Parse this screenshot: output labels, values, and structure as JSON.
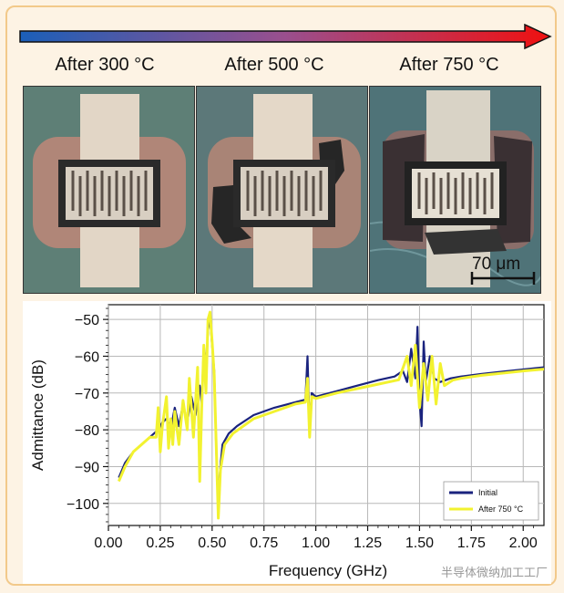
{
  "figure": {
    "labels": [
      "After 300 °C",
      "After 500 °C",
      "After 750 °C"
    ],
    "scale_bar": "70 μm",
    "colors": {
      "arrow_start": "#1b5fb8",
      "arrow_end": "#f01010",
      "initial": "#1a237e",
      "after750": "#f2f230"
    }
  },
  "watermark": "半导体微纳加工工厂",
  "chart_data": {
    "type": "line",
    "xlabel": "Frequency (GHz)",
    "ylabel": "Admittance (dB)",
    "xlim": [
      0.0,
      2.1
    ],
    "ylim": [
      -106,
      -46
    ],
    "xticks": [
      "0.00",
      "0.25",
      "0.50",
      "0.75",
      "1.00",
      "1.25",
      "1.50",
      "1.75",
      "2.00"
    ],
    "yticks": [
      "−50",
      "−60",
      "−70",
      "−80",
      "−90",
      "−100"
    ],
    "grid": true,
    "legend": "bottom-right",
    "series": [
      {
        "name": "Initial",
        "color": "#1a237e",
        "points": [
          [
            0.05,
            -93
          ],
          [
            0.08,
            -89
          ],
          [
            0.12,
            -86
          ],
          [
            0.16,
            -84
          ],
          [
            0.2,
            -82
          ],
          [
            0.24,
            -80
          ],
          [
            0.26,
            -78
          ],
          [
            0.28,
            -77
          ],
          [
            0.3,
            -80
          ],
          [
            0.32,
            -74
          ],
          [
            0.34,
            -79
          ],
          [
            0.36,
            -73
          ],
          [
            0.38,
            -78
          ],
          [
            0.4,
            -71
          ],
          [
            0.42,
            -76
          ],
          [
            0.44,
            -68
          ],
          [
            0.45,
            -73
          ],
          [
            0.46,
            -57
          ],
          [
            0.47,
            -63
          ],
          [
            0.48,
            -53
          ],
          [
            0.49,
            -49
          ],
          [
            0.5,
            -57
          ],
          [
            0.51,
            -64
          ],
          [
            0.52,
            -86
          ],
          [
            0.53,
            -99
          ],
          [
            0.54,
            -90
          ],
          [
            0.55,
            -84
          ],
          [
            0.58,
            -81
          ],
          [
            0.62,
            -79
          ],
          [
            0.7,
            -76
          ],
          [
            0.8,
            -74
          ],
          [
            0.9,
            -72.5
          ],
          [
            0.95,
            -71.8
          ],
          [
            0.96,
            -60
          ],
          [
            0.97,
            -80
          ],
          [
            0.98,
            -70
          ],
          [
            1.0,
            -71
          ],
          [
            1.1,
            -69.5
          ],
          [
            1.2,
            -68
          ],
          [
            1.3,
            -66.5
          ],
          [
            1.38,
            -65.5
          ],
          [
            1.42,
            -64
          ],
          [
            1.44,
            -67
          ],
          [
            1.46,
            -58
          ],
          [
            1.48,
            -66
          ],
          [
            1.49,
            -52
          ],
          [
            1.5,
            -72
          ],
          [
            1.51,
            -79
          ],
          [
            1.52,
            -56
          ],
          [
            1.53,
            -67
          ],
          [
            1.55,
            -60
          ],
          [
            1.57,
            -66
          ],
          [
            1.6,
            -67
          ],
          [
            1.65,
            -66
          ],
          [
            1.7,
            -65.5
          ],
          [
            1.8,
            -64.8
          ],
          [
            1.9,
            -64.2
          ],
          [
            2.0,
            -63.6
          ],
          [
            2.1,
            -63
          ]
        ]
      },
      {
        "name": "After 750 °C",
        "color": "#f2f230",
        "points": [
          [
            0.05,
            -94
          ],
          [
            0.08,
            -90
          ],
          [
            0.12,
            -86
          ],
          [
            0.16,
            -84
          ],
          [
            0.2,
            -82
          ],
          [
            0.23,
            -82
          ],
          [
            0.24,
            -74
          ],
          [
            0.25,
            -86
          ],
          [
            0.26,
            -79
          ],
          [
            0.28,
            -71
          ],
          [
            0.29,
            -85
          ],
          [
            0.3,
            -77
          ],
          [
            0.31,
            -84
          ],
          [
            0.32,
            -75
          ],
          [
            0.34,
            -84
          ],
          [
            0.36,
            -72
          ],
          [
            0.38,
            -80
          ],
          [
            0.39,
            -66
          ],
          [
            0.41,
            -82
          ],
          [
            0.43,
            -63
          ],
          [
            0.44,
            -94
          ],
          [
            0.45,
            -74
          ],
          [
            0.46,
            -57
          ],
          [
            0.47,
            -70
          ],
          [
            0.48,
            -50
          ],
          [
            0.49,
            -48
          ],
          [
            0.5,
            -56
          ],
          [
            0.51,
            -65
          ],
          [
            0.52,
            -85
          ],
          [
            0.53,
            -104
          ],
          [
            0.54,
            -91
          ],
          [
            0.56,
            -84
          ],
          [
            0.6,
            -81
          ],
          [
            0.7,
            -77
          ],
          [
            0.8,
            -75
          ],
          [
            0.9,
            -73
          ],
          [
            0.95,
            -72.5
          ],
          [
            0.96,
            -66
          ],
          [
            0.97,
            -82
          ],
          [
            0.98,
            -71
          ],
          [
            1.0,
            -71.5
          ],
          [
            1.1,
            -70
          ],
          [
            1.2,
            -68.8
          ],
          [
            1.3,
            -67.6
          ],
          [
            1.4,
            -66.4
          ],
          [
            1.44,
            -60
          ],
          [
            1.46,
            -68
          ],
          [
            1.48,
            -57
          ],
          [
            1.5,
            -74
          ],
          [
            1.52,
            -62
          ],
          [
            1.54,
            -72
          ],
          [
            1.56,
            -60
          ],
          [
            1.58,
            -73
          ],
          [
            1.6,
            -62
          ],
          [
            1.62,
            -68
          ],
          [
            1.66,
            -66.5
          ],
          [
            1.7,
            -66
          ],
          [
            1.8,
            -65.2
          ],
          [
            1.9,
            -64.6
          ],
          [
            2.0,
            -64
          ],
          [
            2.1,
            -63.5
          ]
        ]
      }
    ]
  }
}
